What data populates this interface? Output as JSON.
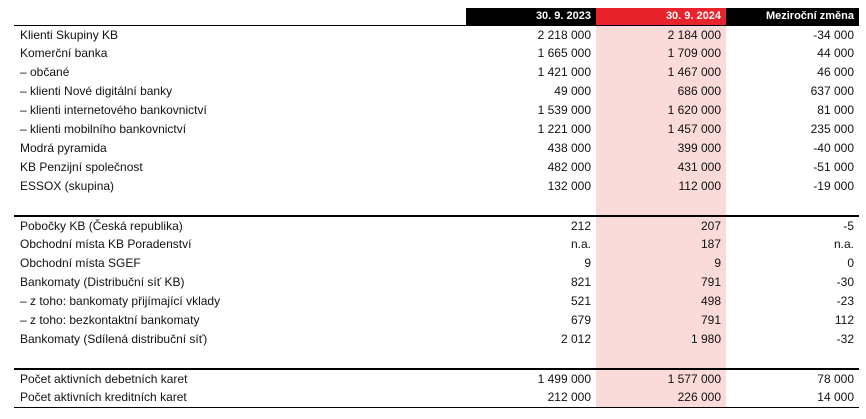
{
  "header": {
    "col1": "30. 9. 2023",
    "col2": "30. 9. 2024",
    "col3": "Meziroční změna"
  },
  "sections": [
    {
      "rows": [
        {
          "label": "Klienti Skupiny KB",
          "v2023": "2 218 000",
          "v2024": "2 184 000",
          "change": "-34 000"
        },
        {
          "label": "Komerční banka",
          "v2023": "1 665 000",
          "v2024": "1 709 000",
          "change": "44 000"
        },
        {
          "label": "– občané",
          "v2023": "1 421 000",
          "v2024": "1 467 000",
          "change": "46 000"
        },
        {
          "label": "– klienti Nové digitální banky",
          "v2023": "49 000",
          "v2024": "686 000",
          "change": "637 000"
        },
        {
          "label": "– klienti internetového bankovnictví",
          "v2023": "1 539 000",
          "v2024": "1 620 000",
          "change": "81 000"
        },
        {
          "label": "– klienti mobilního bankovnictví",
          "v2023": "1 221 000",
          "v2024": "1 457 000",
          "change": "235 000"
        },
        {
          "label": "Modrá pyramida",
          "v2023": "438 000",
          "v2024": "399 000",
          "change": "-40 000"
        },
        {
          "label": "KB Penzijní společnost",
          "v2023": "482 000",
          "v2024": "431 000",
          "change": "-51 000"
        },
        {
          "label": "ESSOX (skupina)",
          "v2023": "132 000",
          "v2024": "112 000",
          "change": "-19 000"
        }
      ]
    },
    {
      "rows": [
        {
          "label": "Pobočky KB (Česká republika)",
          "v2023": "212",
          "v2024": "207",
          "change": "-5"
        },
        {
          "label": "Obchodní místa KB Poradenství",
          "v2023": "n.a.",
          "v2024": "187",
          "change": "n.a."
        },
        {
          "label": "Obchodní místa SGEF",
          "v2023": "9",
          "v2024": "9",
          "change": "0"
        },
        {
          "label": "Bankomaty (Distribuční síť KB)",
          "v2023": "821",
          "v2024": "791",
          "change": "-30"
        },
        {
          "label": "– z toho: bankomaty přijímající vklady",
          "v2023": "521",
          "v2024": "498",
          "change": "-23"
        },
        {
          "label": "– z toho: bezkontaktní bankomaty",
          "v2023": "679",
          "v2024": "791",
          "change": "112"
        },
        {
          "label": "Bankomaty (Sdílená distribuční síť)",
          "v2023": "2 012",
          "v2024": "1 980",
          "change": "-32"
        }
      ]
    },
    {
      "rows": [
        {
          "label": "Počet aktivních debetních karet",
          "v2023": "1 499 000",
          "v2024": "1 577 000",
          "change": "78 000"
        },
        {
          "label": "Počet aktivních kreditních karet",
          "v2023": "212 000",
          "v2024": "226 000",
          "change": "14 000"
        }
      ]
    }
  ]
}
